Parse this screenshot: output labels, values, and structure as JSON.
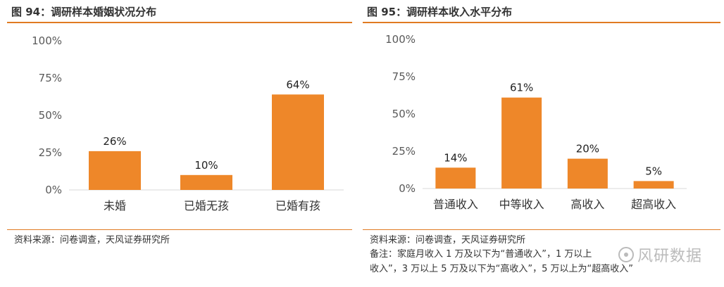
{
  "figures": [
    {
      "title": "图 94：调研样本婚姻状况分布",
      "source": "资料来源：问卷调查，天风证券研究所"
    },
    {
      "title": "图 95：调研样本收入水平分布",
      "source": "资料来源：问卷调查，天风证券研究所",
      "note_lines": [
        "备注：家庭月收入 1 万及以下为“普通收入”，1 万以上",
        "收入”，3 万以上 5 万及以下为“高收入”，5 万以上为“超高收入”"
      ]
    }
  ],
  "watermark": "风研数据",
  "colors": {
    "bar": "#EE8729",
    "axis": "#d9d9d9",
    "rule": "#e07b22"
  },
  "chart_data": [
    {
      "type": "bar",
      "title": "",
      "categories": [
        "未婚",
        "已婚无孩",
        "已婚有孩"
      ],
      "values": [
        26,
        10,
        64
      ],
      "value_labels": [
        "26%",
        "10%",
        "64%"
      ],
      "xlabel": "",
      "ylabel": "",
      "ylim": [
        0,
        100
      ],
      "yticks": [
        "0%",
        "25%",
        "50%",
        "75%",
        "100%"
      ],
      "grid": false
    },
    {
      "type": "bar",
      "title": "",
      "categories": [
        "普通收入",
        "中等收入",
        "高收入",
        "超高收入"
      ],
      "values": [
        14,
        61,
        20,
        5
      ],
      "value_labels": [
        "14%",
        "61%",
        "20%",
        "5%"
      ],
      "xlabel": "",
      "ylabel": "",
      "ylim": [
        0,
        100
      ],
      "yticks": [
        "0%",
        "25%",
        "50%",
        "75%",
        "100%"
      ],
      "grid": false
    }
  ]
}
